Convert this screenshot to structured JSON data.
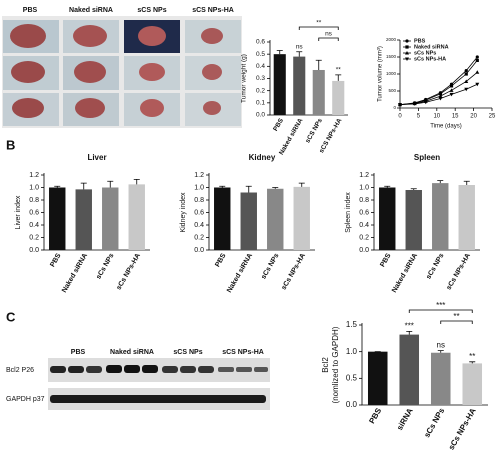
{
  "panel_labels": [
    "A",
    "B",
    "C"
  ],
  "photo_panel": {
    "column_labels": [
      "PBS",
      "Naked siRNA",
      "sCS NPs",
      "sCS NPs-HA"
    ]
  },
  "blot": {
    "column_labels": [
      "PBS",
      "Naked siRNA",
      "sCS NPs",
      "sCS NPs-HA"
    ],
    "row_labels": [
      "Bcl2 P26",
      "GAPDH p37"
    ]
  },
  "chart_data": [
    {
      "type": "bar",
      "y_label": [
        "Tumor weight (g)"
      ],
      "categories": [
        "PBS",
        "Naked siRNA",
        "sCS NPs",
        "sCS NPs-HA"
      ],
      "values": [
        0.5,
        0.48,
        0.37,
        0.28
      ],
      "errors": [
        0.03,
        0.04,
        0.08,
        0.05
      ],
      "colors": [
        "#111111",
        "#555555",
        "#888888",
        "#c8c8c8"
      ],
      "ylim": [
        0,
        0.6
      ],
      "yticks": [
        {
          "value": 0,
          "label": "0.0"
        },
        {
          "value": 0.1,
          "label": "0.1"
        },
        {
          "value": 0.2,
          "label": "0.2"
        },
        {
          "value": 0.3,
          "label": "0.3"
        },
        {
          "value": 0.4,
          "label": "0.4"
        },
        {
          "value": 0.5,
          "label": "0.5"
        },
        {
          "value": 0.6,
          "label": "0.6"
        }
      ],
      "annotations": [
        {
          "text": "ns",
          "category": 1
        },
        {
          "text": "**",
          "category": 3
        }
      ],
      "brackets": [
        {
          "text": "**",
          "from": 1,
          "to": 3
        },
        {
          "text": "ns",
          "from": 2,
          "to": 3
        }
      ]
    },
    {
      "type": "line",
      "x_label": "Time (days)",
      "y_label": "Tumor volume (mm³)",
      "x": [
        0,
        4,
        7,
        11,
        14,
        18,
        21
      ],
      "series": [
        {
          "name": "PBS",
          "color": "#000000",
          "values": [
            100,
            150,
            250,
            450,
            700,
            1100,
            1500
          ]
        },
        {
          "name": "Naked siRNA",
          "color": "#000000",
          "values": [
            100,
            140,
            230,
            420,
            650,
            1000,
            1400
          ]
        },
        {
          "name": "sCs NPs",
          "color": "#000000",
          "values": [
            100,
            130,
            200,
            350,
            520,
            780,
            1050
          ]
        },
        {
          "name": "sCs NPs-HA",
          "color": "#000000",
          "values": [
            100,
            120,
            170,
            280,
            400,
            550,
            700
          ]
        }
      ],
      "xlim": [
        0,
        25
      ],
      "xticks": [
        0,
        5,
        10,
        15,
        20,
        25
      ],
      "ylim": [
        0,
        2000
      ],
      "yticks": [
        0,
        500,
        1000,
        1500,
        2000
      ]
    },
    {
      "type": "bar",
      "title": "Liver",
      "y_label": [
        "Liver index"
      ],
      "categories": [
        "PBS",
        "Naked siRNA",
        "sCs NPs",
        "sCs NPs-HA"
      ],
      "values": [
        1.0,
        0.97,
        1.0,
        1.05
      ],
      "errors": [
        0.02,
        0.1,
        0.1,
        0.08
      ],
      "colors": [
        "#111111",
        "#555555",
        "#888888",
        "#c8c8c8"
      ],
      "ylim": [
        0,
        1.2
      ],
      "yticks": [
        {
          "value": 0,
          "label": "0.0"
        },
        {
          "value": 0.2,
          "label": "0.2"
        },
        {
          "value": 0.4,
          "label": "0.4"
        },
        {
          "value": 0.6,
          "label": "0.6"
        },
        {
          "value": 0.8,
          "label": "0.8"
        },
        {
          "value": 1,
          "label": "1.0"
        },
        {
          "value": 1.2,
          "label": "1.2"
        }
      ]
    },
    {
      "type": "bar",
      "title": "Kidney",
      "y_label": [
        "Kidney index"
      ],
      "categories": [
        "PBS",
        "Naked siRNA",
        "sCs NPs",
        "sCs NPs-HA"
      ],
      "values": [
        1.0,
        0.92,
        0.98,
        1.01
      ],
      "errors": [
        0.02,
        0.1,
        0.02,
        0.06
      ],
      "colors": [
        "#111111",
        "#555555",
        "#888888",
        "#c8c8c8"
      ],
      "ylim": [
        0,
        1.2
      ],
      "yticks": [
        {
          "value": 0,
          "label": "0.0"
        },
        {
          "value": 0.2,
          "label": "0.2"
        },
        {
          "value": 0.4,
          "label": "0.4"
        },
        {
          "value": 0.6,
          "label": "0.6"
        },
        {
          "value": 0.8,
          "label": "0.8"
        },
        {
          "value": 1,
          "label": "1.0"
        },
        {
          "value": 1.2,
          "label": "1.2"
        }
      ]
    },
    {
      "type": "bar",
      "title": "Spleen",
      "y_label": [
        "Spleen index"
      ],
      "categories": [
        "PBS",
        "Naked siRNA",
        "sCs NPs",
        "sCs NPs-HA"
      ],
      "values": [
        1.0,
        0.96,
        1.07,
        1.04
      ],
      "errors": [
        0.02,
        0.02,
        0.04,
        0.06
      ],
      "colors": [
        "#111111",
        "#555555",
        "#888888",
        "#c8c8c8"
      ],
      "ylim": [
        0,
        1.2
      ],
      "yticks": [
        {
          "value": 0,
          "label": "0.0"
        },
        {
          "value": 0.2,
          "label": "0.2"
        },
        {
          "value": 0.4,
          "label": "0.4"
        },
        {
          "value": 0.6,
          "label": "0.6"
        },
        {
          "value": 0.8,
          "label": "0.8"
        },
        {
          "value": 1,
          "label": "1.0"
        },
        {
          "value": 1.2,
          "label": "1.2"
        }
      ]
    },
    {
      "type": "bar",
      "y_label": [
        "Bcl2",
        "(nomlized to GAPDH)"
      ],
      "categories": [
        "PBS",
        "siRNA",
        "sCs NPs",
        "sCs NPs-HA"
      ],
      "values": [
        1.0,
        1.32,
        0.98,
        0.78
      ],
      "errors": [
        0.0,
        0.06,
        0.04,
        0.03
      ],
      "colors": [
        "#111111",
        "#555555",
        "#888888",
        "#c8c8c8"
      ],
      "ylim": [
        0,
        1.5
      ],
      "yticks": [
        {
          "value": 0,
          "label": "0.0"
        },
        {
          "value": 0.5,
          "label": "0.5"
        },
        {
          "value": 1,
          "label": "1.0"
        },
        {
          "value": 1.5,
          "label": "1.5"
        }
      ],
      "annotations": [
        {
          "text": "***",
          "category": 1
        },
        {
          "text": "ns",
          "category": 2
        },
        {
          "text": "**",
          "category": 3
        }
      ],
      "brackets": [
        {
          "text": "***",
          "from": 1,
          "to": 3
        },
        {
          "text": "**",
          "from": 2,
          "to": 3
        }
      ]
    }
  ]
}
